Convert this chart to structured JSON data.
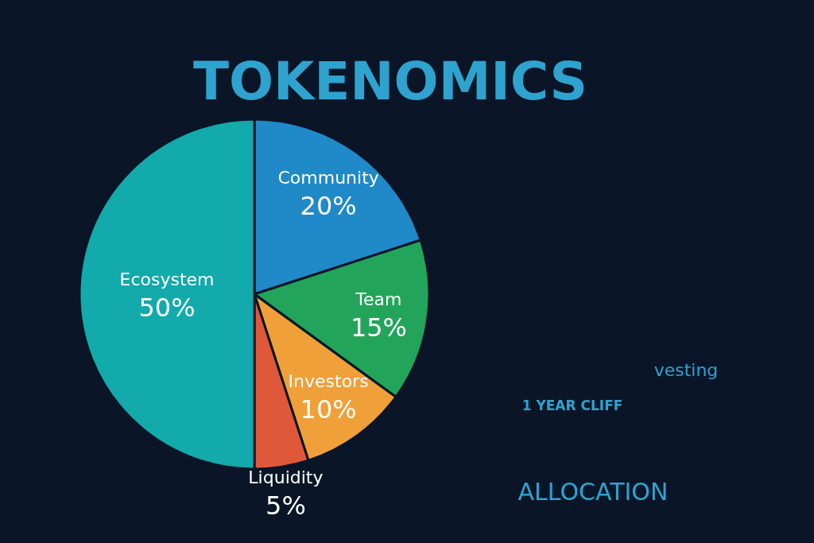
{
  "chart_data": {
    "type": "pie",
    "title": "TOKENOMICS",
    "categories": [
      "Community",
      "Team",
      "Investors",
      "Liquidity",
      "Ecosystem"
    ],
    "values": [
      20,
      15,
      10,
      5,
      50
    ],
    "colors": [
      "#2089c8",
      "#22a55a",
      "#f0a038",
      "#e0583a",
      "#12aaaa"
    ],
    "value_labels": [
      "20%",
      "15%",
      "10%",
      "5%",
      "50%"
    ],
    "annotations": [
      "vesting",
      "1 YEAR CLIFF",
      "ALLOCATION"
    ]
  }
}
